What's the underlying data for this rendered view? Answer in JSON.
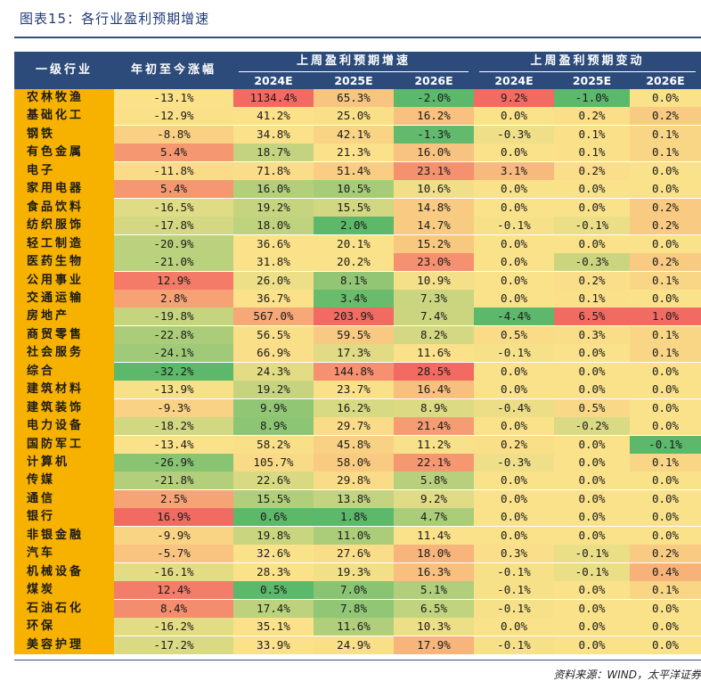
{
  "title": "图表15：各行业盈利预期增速",
  "source": "资料来源：WIND，太平洋证券",
  "colors": {
    "header_bg": "#2c4b7b",
    "industry_col": "#f7b200",
    "scale_low": "#5cb86a",
    "scale_mid": "#fae28a",
    "scale_high": "#f26b63"
  },
  "chart_data": {
    "type": "table",
    "title": "图表15：各行业盈利预期增速",
    "header": {
      "col_industry": "一级行业",
      "col_ytd": "年初至今涨幅",
      "group_growth": "上周盈利预期增速",
      "group_change": "上周盈利预期变动",
      "years": [
        "2024E",
        "2025E",
        "2026E"
      ]
    },
    "columns": [
      "一级行业",
      "年初至今涨幅",
      "上周盈利预期增速 2024E",
      "上周盈利预期增速 2025E",
      "上周盈利预期增速 2026E",
      "上周盈利预期变动 2024E",
      "上周盈利预期变动 2025E",
      "上周盈利预期变动 2026E"
    ],
    "rows": [
      [
        "农林牧渔",
        "-13.1%",
        "1134.4%",
        "65.3%",
        "-2.0%",
        "9.2%",
        "-1.0%",
        "0.0%"
      ],
      [
        "基础化工",
        "-12.9%",
        "41.2%",
        "25.0%",
        "16.2%",
        "0.0%",
        "0.2%",
        "0.2%"
      ],
      [
        "钢铁",
        "-8.8%",
        "34.8%",
        "42.1%",
        "-1.3%",
        "-0.3%",
        "0.1%",
        "0.1%"
      ],
      [
        "有色金属",
        "5.4%",
        "18.7%",
        "21.3%",
        "16.0%",
        "0.0%",
        "0.1%",
        "0.1%"
      ],
      [
        "电子",
        "-11.8%",
        "71.8%",
        "51.4%",
        "23.1%",
        "3.1%",
        "0.2%",
        "0.0%"
      ],
      [
        "家用电器",
        "5.4%",
        "16.0%",
        "10.5%",
        "10.6%",
        "0.0%",
        "0.0%",
        "0.0%"
      ],
      [
        "食品饮料",
        "-16.5%",
        "19.2%",
        "15.5%",
        "14.8%",
        "0.0%",
        "0.0%",
        "0.2%"
      ],
      [
        "纺织服饰",
        "-17.8%",
        "18.0%",
        "2.0%",
        "14.7%",
        "-0.1%",
        "-0.1%",
        "0.2%"
      ],
      [
        "轻工制造",
        "-20.9%",
        "36.6%",
        "20.1%",
        "15.2%",
        "0.0%",
        "0.0%",
        "0.0%"
      ],
      [
        "医药生物",
        "-21.0%",
        "31.8%",
        "20.2%",
        "23.0%",
        "0.0%",
        "-0.3%",
        "0.2%"
      ],
      [
        "公用事业",
        "12.9%",
        "26.0%",
        "8.1%",
        "10.9%",
        "0.0%",
        "0.2%",
        "0.1%"
      ],
      [
        "交通运输",
        "2.8%",
        "36.7%",
        "3.4%",
        "7.3%",
        "0.0%",
        "0.1%",
        "0.0%"
      ],
      [
        "房地产",
        "-19.8%",
        "567.0%",
        "203.9%",
        "7.4%",
        "-4.4%",
        "6.5%",
        "1.0%"
      ],
      [
        "商贸零售",
        "-22.8%",
        "56.5%",
        "59.5%",
        "8.2%",
        "0.5%",
        "0.3%",
        "0.1%"
      ],
      [
        "社会服务",
        "-24.1%",
        "66.9%",
        "17.3%",
        "11.6%",
        "-0.1%",
        "0.0%",
        "0.1%"
      ],
      [
        "综合",
        "-32.2%",
        "24.3%",
        "144.8%",
        "28.5%",
        "0.0%",
        "0.0%",
        "0.0%"
      ],
      [
        "建筑材料",
        "-13.9%",
        "19.2%",
        "23.7%",
        "16.4%",
        "0.0%",
        "0.0%",
        "0.0%"
      ],
      [
        "建筑装饰",
        "-9.3%",
        "9.9%",
        "16.2%",
        "8.9%",
        "-0.4%",
        "0.5%",
        "0.0%"
      ],
      [
        "电力设备",
        "-18.2%",
        "8.9%",
        "29.7%",
        "21.4%",
        "0.0%",
        "-0.2%",
        "0.0%"
      ],
      [
        "国防军工",
        "-13.4%",
        "58.2%",
        "45.8%",
        "11.2%",
        "0.2%",
        "0.0%",
        "-0.1%"
      ],
      [
        "计算机",
        "-26.9%",
        "105.7%",
        "58.0%",
        "22.1%",
        "-0.3%",
        "0.0%",
        "0.1%"
      ],
      [
        "传媒",
        "-21.8%",
        "22.6%",
        "29.8%",
        "5.8%",
        "0.0%",
        "0.0%",
        "0.0%"
      ],
      [
        "通信",
        "2.5%",
        "15.5%",
        "13.8%",
        "9.2%",
        "0.0%",
        "0.0%",
        "0.0%"
      ],
      [
        "银行",
        "16.9%",
        "0.6%",
        "1.8%",
        "4.7%",
        "0.0%",
        "0.0%",
        "0.0%"
      ],
      [
        "非银金融",
        "-9.9%",
        "19.8%",
        "11.0%",
        "11.4%",
        "0.0%",
        "0.0%",
        "0.0%"
      ],
      [
        "汽车",
        "-5.7%",
        "32.6%",
        "27.6%",
        "18.0%",
        "0.3%",
        "-0.1%",
        "0.2%"
      ],
      [
        "机械设备",
        "-16.1%",
        "28.3%",
        "19.3%",
        "16.3%",
        "-0.1%",
        "-0.1%",
        "0.4%"
      ],
      [
        "煤炭",
        "12.4%",
        "0.5%",
        "7.0%",
        "5.1%",
        "-0.1%",
        "0.0%",
        "0.1%"
      ],
      [
        "石油石化",
        "8.4%",
        "17.4%",
        "7.8%",
        "6.5%",
        "-0.1%",
        "0.0%",
        "0.0%"
      ],
      [
        "环保",
        "-16.2%",
        "35.1%",
        "11.6%",
        "10.3%",
        "0.0%",
        "0.0%",
        "0.0%"
      ],
      [
        "美容护理",
        "-17.2%",
        "33.9%",
        "24.9%",
        "17.9%",
        "-0.1%",
        "0.0%",
        "0.0%"
      ]
    ]
  }
}
